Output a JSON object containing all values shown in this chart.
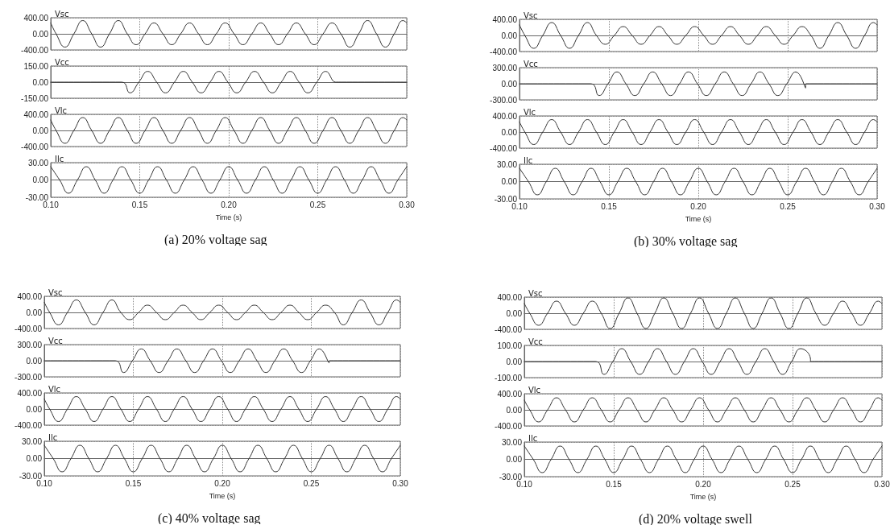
{
  "chart_data": [
    {
      "type": "line",
      "title": "Vsc",
      "x": [
        0.1,
        0.103,
        0.108,
        0.113,
        0.118,
        0.123,
        0.128,
        0.133,
        0.138,
        0.143,
        0.148,
        0.153,
        0.158,
        0.163,
        0.168,
        0.173,
        0.178,
        0.183,
        0.188,
        0.193,
        0.198,
        0.203,
        0.208,
        0.213,
        0.218,
        0.223,
        0.228,
        0.233,
        0.238,
        0.243,
        0.248,
        0.253,
        0.258,
        0.263,
        0.268,
        0.273,
        0.278,
        0.283,
        0.288,
        0.293,
        0.298,
        0.3
      ],
      "series": [
        {
          "color": "#333333",
          "values": [
            270,
            0,
            -330,
            0,
            330,
            0,
            -330,
            0,
            330,
            0,
            -270,
            0,
            270,
            0,
            -270,
            0,
            270,
            0,
            -270,
            0,
            270,
            0,
            -270,
            0,
            270,
            0,
            -270,
            0,
            270,
            0,
            -270,
            0,
            270,
            0,
            -330,
            0,
            330,
            0,
            -330,
            0,
            330,
            270
          ]
        }
      ],
      "xlim": [
        0.1,
        0.3
      ],
      "xticks": [
        {
          "value": 0.1,
          "label": null
        },
        {
          "value": 0.15,
          "label": null
        },
        {
          "value": 0.2,
          "label": null
        },
        {
          "value": 0.25,
          "label": null
        },
        {
          "value": 0.3,
          "label": null
        }
      ],
      "ylim": [
        -400,
        400
      ],
      "yticks": [
        {
          "value": -400,
          "label": "-400.00"
        },
        {
          "value": 0,
          "label": "0.00"
        },
        {
          "value": 400,
          "label": "400.00"
        }
      ],
      "grid": true,
      "tick_labels": "y",
      "line_style": "solid"
    },
    {
      "type": "line",
      "title": "Vcc",
      "x": [
        0.1,
        0.14,
        0.1445,
        0.1495,
        0.1545,
        0.1595,
        0.1645,
        0.1695,
        0.1745,
        0.1795,
        0.1845,
        0.1895,
        0.1945,
        0.1995,
        0.2045,
        0.2095,
        0.2145,
        0.2195,
        0.2245,
        0.2295,
        0.2345,
        0.2395,
        0.2445,
        0.2495,
        0.2545,
        0.26,
        0.2601,
        0.3
      ],
      "series": [
        {
          "color": "#333333",
          "values": [
            0,
            0,
            -100,
            0,
            100,
            0,
            -100,
            0,
            100,
            0,
            -100,
            0,
            100,
            0,
            -100,
            0,
            100,
            0,
            -100,
            0,
            100,
            0,
            -100,
            0,
            100,
            0,
            0,
            0
          ]
        }
      ],
      "xlim": [
        0.1,
        0.3
      ],
      "xticks": [
        {
          "value": 0.1,
          "label": null
        },
        {
          "value": 0.15,
          "label": null
        },
        {
          "value": 0.2,
          "label": null
        },
        {
          "value": 0.25,
          "label": null
        },
        {
          "value": 0.3,
          "label": null
        }
      ],
      "ylim": [
        -150,
        150
      ],
      "yticks": [
        {
          "value": -150,
          "label": "-150.00"
        },
        {
          "value": 0,
          "label": "0.00"
        },
        {
          "value": 150,
          "label": "150.00"
        }
      ],
      "grid": true,
      "tick_labels": "y",
      "line_style": "solid"
    },
    {
      "type": "line",
      "title": "Vlc",
      "x": [
        0.1,
        0.103,
        0.108,
        0.113,
        0.118,
        0.123,
        0.128,
        0.133,
        0.138,
        0.143,
        0.148,
        0.153,
        0.158,
        0.163,
        0.168,
        0.173,
        0.178,
        0.183,
        0.188,
        0.193,
        0.198,
        0.203,
        0.208,
        0.213,
        0.218,
        0.223,
        0.228,
        0.233,
        0.238,
        0.243,
        0.248,
        0.253,
        0.258,
        0.263,
        0.268,
        0.273,
        0.278,
        0.283,
        0.288,
        0.293,
        0.298,
        0.3
      ],
      "series": [
        {
          "color": "#333333",
          "values": [
            260,
            0,
            -320,
            0,
            320,
            0,
            -320,
            0,
            320,
            0,
            -320,
            0,
            320,
            0,
            -320,
            0,
            320,
            0,
            -320,
            0,
            320,
            0,
            -320,
            0,
            320,
            0,
            -320,
            0,
            320,
            0,
            -320,
            0,
            320,
            0,
            -320,
            0,
            320,
            0,
            -320,
            0,
            320,
            260
          ]
        }
      ],
      "xlim": [
        0.1,
        0.3
      ],
      "xticks": [
        {
          "value": 0.1,
          "label": null
        },
        {
          "value": 0.15,
          "label": null
        },
        {
          "value": 0.2,
          "label": null
        },
        {
          "value": 0.25,
          "label": null
        },
        {
          "value": 0.3,
          "label": null
        }
      ],
      "ylim": [
        -400,
        400
      ],
      "yticks": [
        {
          "value": -400,
          "label": "-400.00"
        },
        {
          "value": 0,
          "label": "0.00"
        },
        {
          "value": 400,
          "label": "400.00"
        }
      ],
      "grid": true,
      "tick_labels": "y",
      "line_style": "solid"
    },
    {
      "type": "line",
      "title": "Ilc",
      "x": [
        0.1,
        0.105,
        0.11,
        0.115,
        0.12,
        0.125,
        0.13,
        0.135,
        0.14,
        0.145,
        0.15,
        0.155,
        0.16,
        0.165,
        0.17,
        0.175,
        0.18,
        0.185,
        0.19,
        0.195,
        0.2,
        0.205,
        0.21,
        0.215,
        0.22,
        0.225,
        0.23,
        0.235,
        0.24,
        0.245,
        0.25,
        0.255,
        0.26,
        0.265,
        0.27,
        0.275,
        0.28,
        0.285,
        0.29,
        0.295,
        0.3
      ],
      "series": [
        {
          "color": "#333333",
          "values": [
            23,
            0,
            -23,
            0,
            23,
            0,
            -23,
            0,
            23,
            0,
            -23,
            0,
            23,
            0,
            -23,
            0,
            23,
            0,
            -23,
            0,
            23,
            0,
            -23,
            0,
            23,
            0,
            -23,
            0,
            23,
            0,
            -23,
            0,
            23,
            0,
            -23,
            0,
            23,
            0,
            -23,
            0,
            23
          ]
        }
      ],
      "xlim": [
        0.1,
        0.3
      ],
      "xticks": [
        {
          "value": 0.1,
          "label": "0.10"
        },
        {
          "value": 0.15,
          "label": "0.15"
        },
        {
          "value": 0.2,
          "label": "0.20"
        },
        {
          "value": 0.25,
          "label": "0.25"
        },
        {
          "value": 0.3,
          "label": "0.30"
        }
      ],
      "ylim": [
        -30,
        30
      ],
      "yticks": [
        {
          "value": -30,
          "label": "-30.00"
        },
        {
          "value": 0,
          "label": "0.00"
        },
        {
          "value": 30,
          "label": "30.00"
        }
      ],
      "grid": true,
      "line_style": "solid",
      "xlabel": "Time (s)",
      "annotations": [
        "(a) 20% voltage sag"
      ]
    },
    {
      "type": "line",
      "title": "Vsc",
      "x": [
        0.1,
        0.103,
        0.108,
        0.113,
        0.118,
        0.123,
        0.128,
        0.133,
        0.138,
        0.143,
        0.148,
        0.153,
        0.158,
        0.163,
        0.168,
        0.173,
        0.178,
        0.183,
        0.188,
        0.193,
        0.198,
        0.203,
        0.208,
        0.213,
        0.218,
        0.223,
        0.228,
        0.233,
        0.238,
        0.243,
        0.248,
        0.253,
        0.258,
        0.263,
        0.268,
        0.273,
        0.278,
        0.283,
        0.288,
        0.293,
        0.298,
        0.3
      ],
      "series": [
        {
          "color": "#333333",
          "values": [
            260,
            0,
            -320,
            0,
            320,
            0,
            -320,
            0,
            320,
            0,
            -220,
            0,
            220,
            0,
            -220,
            0,
            220,
            0,
            -220,
            0,
            220,
            0,
            -220,
            0,
            220,
            0,
            -220,
            0,
            220,
            0,
            -220,
            0,
            220,
            0,
            -320,
            0,
            320,
            0,
            -320,
            0,
            320,
            260
          ]
        }
      ],
      "xlim": [
        0.1,
        0.3
      ],
      "xticks": [
        {
          "value": 0.1,
          "label": null
        },
        {
          "value": 0.15,
          "label": null
        },
        {
          "value": 0.2,
          "label": null
        },
        {
          "value": 0.25,
          "label": null
        },
        {
          "value": 0.3,
          "label": null
        }
      ],
      "ylim": [
        -400,
        400
      ],
      "yticks": [
        {
          "value": -400,
          "label": "-400.00"
        },
        {
          "value": 0,
          "label": "0.00"
        },
        {
          "value": 400,
          "label": "400.00"
        }
      ],
      "grid": true,
      "tick_labels": "y",
      "line_style": "solid"
    },
    {
      "type": "line",
      "title": "Vcc",
      "x": [
        0.1,
        0.14,
        0.1445,
        0.1495,
        0.1545,
        0.1595,
        0.1645,
        0.1695,
        0.1745,
        0.1795,
        0.1845,
        0.1895,
        0.1945,
        0.1995,
        0.2045,
        0.2095,
        0.2145,
        0.2195,
        0.2245,
        0.2295,
        0.2345,
        0.2395,
        0.2445,
        0.2495,
        0.2545,
        0.26,
        0.2601,
        0.3
      ],
      "series": [
        {
          "color": "#333333",
          "values": [
            0,
            0,
            -220,
            0,
            220,
            0,
            -220,
            0,
            220,
            0,
            -220,
            0,
            220,
            0,
            -220,
            0,
            220,
            0,
            -220,
            0,
            220,
            0,
            -220,
            0,
            220,
            -80,
            0,
            0
          ]
        }
      ],
      "xlim": [
        0.1,
        0.3
      ],
      "xticks": [
        {
          "value": 0.1,
          "label": null
        },
        {
          "value": 0.15,
          "label": null
        },
        {
          "value": 0.2,
          "label": null
        },
        {
          "value": 0.25,
          "label": null
        },
        {
          "value": 0.3,
          "label": null
        }
      ],
      "ylim": [
        -300,
        300
      ],
      "yticks": [
        {
          "value": -300,
          "label": "-300.00"
        },
        {
          "value": 0,
          "label": "0.00"
        },
        {
          "value": 300,
          "label": "300.00"
        }
      ],
      "grid": true,
      "tick_labels": "y",
      "line_style": "solid"
    },
    {
      "type": "line",
      "title": "Vlc",
      "x": [
        0.1,
        0.103,
        0.108,
        0.113,
        0.118,
        0.123,
        0.128,
        0.133,
        0.138,
        0.143,
        0.148,
        0.153,
        0.158,
        0.163,
        0.168,
        0.173,
        0.178,
        0.183,
        0.188,
        0.193,
        0.198,
        0.203,
        0.208,
        0.213,
        0.218,
        0.223,
        0.228,
        0.233,
        0.238,
        0.243,
        0.248,
        0.253,
        0.258,
        0.263,
        0.268,
        0.273,
        0.278,
        0.283,
        0.288,
        0.293,
        0.298,
        0.3
      ],
      "series": [
        {
          "color": "#333333",
          "values": [
            250,
            0,
            -310,
            0,
            310,
            0,
            -310,
            0,
            310,
            0,
            -310,
            0,
            310,
            0,
            -310,
            0,
            310,
            0,
            -310,
            0,
            310,
            0,
            -310,
            0,
            310,
            0,
            -310,
            0,
            310,
            0,
            -310,
            0,
            310,
            0,
            -310,
            0,
            310,
            0,
            -310,
            0,
            310,
            250
          ]
        }
      ],
      "xlim": [
        0.1,
        0.3
      ],
      "xticks": [
        {
          "value": 0.1,
          "label": null
        },
        {
          "value": 0.15,
          "label": null
        },
        {
          "value": 0.2,
          "label": null
        },
        {
          "value": 0.25,
          "label": null
        },
        {
          "value": 0.3,
          "label": null
        }
      ],
      "ylim": [
        -400,
        400
      ],
      "yticks": [
        {
          "value": -400,
          "label": "-400.00"
        },
        {
          "value": 0,
          "label": "0.00"
        },
        {
          "value": 400,
          "label": "400.00"
        }
      ],
      "grid": true,
      "tick_labels": "y",
      "line_style": "solid"
    },
    {
      "type": "line",
      "title": "Ilc",
      "x": [
        0.1,
        0.105,
        0.11,
        0.115,
        0.12,
        0.125,
        0.13,
        0.135,
        0.14,
        0.145,
        0.15,
        0.155,
        0.16,
        0.165,
        0.17,
        0.175,
        0.18,
        0.185,
        0.19,
        0.195,
        0.2,
        0.205,
        0.21,
        0.215,
        0.22,
        0.225,
        0.23,
        0.235,
        0.24,
        0.245,
        0.25,
        0.255,
        0.26,
        0.265,
        0.27,
        0.275,
        0.28,
        0.285,
        0.29,
        0.295,
        0.3
      ],
      "series": [
        {
          "color": "#333333",
          "values": [
            23,
            0,
            -23,
            0,
            23,
            0,
            -23,
            0,
            23,
            0,
            -23,
            0,
            23,
            0,
            -23,
            0,
            23,
            0,
            -23,
            0,
            23,
            0,
            -23,
            0,
            23,
            0,
            -23,
            0,
            23,
            0,
            -23,
            0,
            23,
            0,
            -23,
            0,
            23,
            0,
            -23,
            0,
            23
          ]
        }
      ],
      "xlim": [
        0.1,
        0.3
      ],
      "xticks": [
        {
          "value": 0.1,
          "label": "0.10"
        },
        {
          "value": 0.15,
          "label": "0.15"
        },
        {
          "value": 0.2,
          "label": "0.20"
        },
        {
          "value": 0.25,
          "label": "0.25"
        },
        {
          "value": 0.3,
          "label": "0.30"
        }
      ],
      "ylim": [
        -30,
        30
      ],
      "yticks": [
        {
          "value": -30,
          "label": "-30.00"
        },
        {
          "value": 0,
          "label": "0.00"
        },
        {
          "value": 30,
          "label": "30.00"
        }
      ],
      "grid": true,
      "line_style": "solid",
      "xlabel": "Time (s)",
      "annotations": [
        "(b) 30% voltage sag"
      ]
    },
    {
      "type": "line",
      "title": "Vsc",
      "x": [
        0.1,
        0.103,
        0.108,
        0.113,
        0.118,
        0.123,
        0.128,
        0.133,
        0.138,
        0.143,
        0.148,
        0.153,
        0.158,
        0.163,
        0.168,
        0.173,
        0.178,
        0.183,
        0.188,
        0.193,
        0.198,
        0.203,
        0.208,
        0.213,
        0.218,
        0.223,
        0.228,
        0.233,
        0.238,
        0.243,
        0.248,
        0.253,
        0.258,
        0.263,
        0.268,
        0.273,
        0.278,
        0.283,
        0.288,
        0.293,
        0.298,
        0.3
      ],
      "series": [
        {
          "color": "#333333",
          "values": [
            250,
            0,
            -310,
            0,
            310,
            0,
            -310,
            0,
            310,
            0,
            -180,
            0,
            180,
            0,
            -180,
            0,
            180,
            0,
            -180,
            0,
            180,
            0,
            -180,
            0,
            180,
            0,
            -180,
            0,
            180,
            0,
            -180,
            0,
            180,
            0,
            -310,
            0,
            310,
            0,
            -310,
            0,
            310,
            250
          ]
        }
      ],
      "xlim": [
        0.1,
        0.3
      ],
      "xticks": [
        {
          "value": 0.1,
          "label": null
        },
        {
          "value": 0.15,
          "label": null
        },
        {
          "value": 0.2,
          "label": null
        },
        {
          "value": 0.25,
          "label": null
        },
        {
          "value": 0.3,
          "label": null
        }
      ],
      "ylim": [
        -400,
        400
      ],
      "yticks": [
        {
          "value": -400,
          "label": "-400.00"
        },
        {
          "value": 0,
          "label": "0.00"
        },
        {
          "value": 400,
          "label": "400.00"
        }
      ],
      "grid": true,
      "tick_labels": "y",
      "line_style": "solid"
    },
    {
      "type": "line",
      "title": "Vcc",
      "x": [
        0.1,
        0.14,
        0.1445,
        0.1495,
        0.1545,
        0.1595,
        0.1645,
        0.1695,
        0.1745,
        0.1795,
        0.1845,
        0.1895,
        0.1945,
        0.1995,
        0.2045,
        0.2095,
        0.2145,
        0.2195,
        0.2245,
        0.2295,
        0.2345,
        0.2395,
        0.2445,
        0.2495,
        0.2545,
        0.26,
        0.2601,
        0.3
      ],
      "series": [
        {
          "color": "#333333",
          "values": [
            0,
            0,
            -220,
            0,
            220,
            0,
            -220,
            0,
            220,
            0,
            -220,
            0,
            220,
            0,
            -220,
            0,
            220,
            0,
            -220,
            0,
            220,
            0,
            -220,
            0,
            220,
            -40,
            0,
            0
          ]
        }
      ],
      "xlim": [
        0.1,
        0.3
      ],
      "xticks": [
        {
          "value": 0.1,
          "label": null
        },
        {
          "value": 0.15,
          "label": null
        },
        {
          "value": 0.2,
          "label": null
        },
        {
          "value": 0.25,
          "label": null
        },
        {
          "value": 0.3,
          "label": null
        }
      ],
      "ylim": [
        -300,
        300
      ],
      "yticks": [
        {
          "value": -300,
          "label": "-300.00"
        },
        {
          "value": 0,
          "label": "0.00"
        },
        {
          "value": 300,
          "label": "300.00"
        }
      ],
      "grid": true,
      "tick_labels": "y",
      "line_style": "solid"
    },
    {
      "type": "line",
      "title": "Vlc",
      "x": [
        0.1,
        0.103,
        0.108,
        0.113,
        0.118,
        0.123,
        0.128,
        0.133,
        0.138,
        0.143,
        0.148,
        0.153,
        0.158,
        0.163,
        0.168,
        0.173,
        0.178,
        0.183,
        0.188,
        0.193,
        0.198,
        0.203,
        0.208,
        0.213,
        0.218,
        0.223,
        0.228,
        0.233,
        0.238,
        0.243,
        0.248,
        0.253,
        0.258,
        0.263,
        0.268,
        0.273,
        0.278,
        0.283,
        0.288,
        0.293,
        0.298,
        0.3
      ],
      "series": [
        {
          "color": "#333333",
          "values": [
            250,
            0,
            -310,
            0,
            310,
            0,
            -310,
            0,
            310,
            0,
            -310,
            0,
            310,
            0,
            -310,
            0,
            310,
            0,
            -310,
            0,
            310,
            0,
            -310,
            0,
            310,
            0,
            -310,
            0,
            310,
            0,
            -310,
            0,
            310,
            0,
            -310,
            0,
            310,
            0,
            -310,
            0,
            310,
            250
          ]
        }
      ],
      "xlim": [
        0.1,
        0.3
      ],
      "xticks": [
        {
          "value": 0.1,
          "label": null
        },
        {
          "value": 0.15,
          "label": null
        },
        {
          "value": 0.2,
          "label": null
        },
        {
          "value": 0.25,
          "label": null
        },
        {
          "value": 0.3,
          "label": null
        }
      ],
      "ylim": [
        -400,
        400
      ],
      "yticks": [
        {
          "value": -400,
          "label": "-400.00"
        },
        {
          "value": 0,
          "label": "0.00"
        },
        {
          "value": 400,
          "label": "400.00"
        }
      ],
      "grid": true,
      "tick_labels": "y",
      "line_style": "solid"
    },
    {
      "type": "line",
      "title": "Ilc",
      "x": [
        0.1,
        0.105,
        0.11,
        0.115,
        0.12,
        0.125,
        0.13,
        0.135,
        0.14,
        0.145,
        0.15,
        0.155,
        0.16,
        0.165,
        0.17,
        0.175,
        0.18,
        0.185,
        0.19,
        0.195,
        0.2,
        0.205,
        0.21,
        0.215,
        0.22,
        0.225,
        0.23,
        0.235,
        0.24,
        0.245,
        0.25,
        0.255,
        0.26,
        0.265,
        0.27,
        0.275,
        0.28,
        0.285,
        0.29,
        0.295,
        0.3
      ],
      "series": [
        {
          "color": "#333333",
          "values": [
            23,
            0,
            -23,
            0,
            23,
            0,
            -23,
            0,
            23,
            0,
            -23,
            0,
            23,
            0,
            -23,
            0,
            23,
            0,
            -23,
            0,
            23,
            0,
            -23,
            0,
            23,
            0,
            -23,
            0,
            23,
            0,
            -23,
            0,
            23,
            0,
            -23,
            0,
            23,
            0,
            -23,
            0,
            23
          ]
        }
      ],
      "xlim": [
        0.1,
        0.3
      ],
      "xticks": [
        {
          "value": 0.1,
          "label": "0.10"
        },
        {
          "value": 0.15,
          "label": "0.15"
        },
        {
          "value": 0.2,
          "label": "0.20"
        },
        {
          "value": 0.25,
          "label": "0.25"
        },
        {
          "value": 0.3,
          "label": "0.30"
        }
      ],
      "ylim": [
        -30,
        30
      ],
      "yticks": [
        {
          "value": -30,
          "label": "-30.00"
        },
        {
          "value": 0,
          "label": "0.00"
        },
        {
          "value": 30,
          "label": "30.00"
        }
      ],
      "grid": true,
      "line_style": "solid",
      "xlabel": "Time (s)",
      "annotations": [
        "(c) 40% voltage sag"
      ]
    },
    {
      "type": "line",
      "title": "Vsc",
      "x": [
        0.1,
        0.103,
        0.108,
        0.113,
        0.118,
        0.123,
        0.128,
        0.133,
        0.138,
        0.143,
        0.148,
        0.153,
        0.158,
        0.163,
        0.168,
        0.173,
        0.178,
        0.183,
        0.188,
        0.193,
        0.198,
        0.203,
        0.208,
        0.213,
        0.218,
        0.223,
        0.228,
        0.233,
        0.238,
        0.243,
        0.248,
        0.253,
        0.258,
        0.263,
        0.268,
        0.273,
        0.278,
        0.283,
        0.288,
        0.293,
        0.298,
        0.3
      ],
      "series": [
        {
          "color": "#333333",
          "values": [
            240,
            0,
            -300,
            0,
            300,
            0,
            -300,
            0,
            300,
            0,
            -380,
            0,
            380,
            0,
            -380,
            0,
            380,
            0,
            -380,
            0,
            380,
            0,
            -380,
            0,
            380,
            0,
            -380,
            0,
            380,
            0,
            -380,
            0,
            380,
            0,
            -300,
            0,
            300,
            0,
            -300,
            0,
            300,
            240
          ]
        }
      ],
      "xlim": [
        0.1,
        0.3
      ],
      "xticks": [
        {
          "value": 0.1,
          "label": null
        },
        {
          "value": 0.15,
          "label": null
        },
        {
          "value": 0.2,
          "label": null
        },
        {
          "value": 0.25,
          "label": null
        },
        {
          "value": 0.3,
          "label": null
        }
      ],
      "ylim": [
        -400,
        400
      ],
      "yticks": [
        {
          "value": -400,
          "label": "-400.00"
        },
        {
          "value": 0,
          "label": "0.00"
        },
        {
          "value": 400,
          "label": "400.00"
        }
      ],
      "grid": true,
      "tick_labels": "y",
      "line_style": "solid"
    },
    {
      "type": "line",
      "title": "Vcc",
      "x": [
        0.1,
        0.14,
        0.1445,
        0.1495,
        0.1545,
        0.1595,
        0.1645,
        0.1695,
        0.1745,
        0.1795,
        0.1845,
        0.1895,
        0.1945,
        0.1995,
        0.2045,
        0.2095,
        0.2145,
        0.2195,
        0.2245,
        0.2295,
        0.2345,
        0.2395,
        0.2445,
        0.2495,
        0.2545,
        0.26,
        0.2601,
        0.3
      ],
      "series": [
        {
          "color": "#333333",
          "values": [
            0,
            0,
            -80,
            0,
            80,
            0,
            -80,
            0,
            80,
            0,
            -80,
            0,
            80,
            0,
            -80,
            0,
            80,
            0,
            -80,
            0,
            80,
            0,
            -80,
            0,
            80,
            20,
            0,
            0
          ]
        }
      ],
      "xlim": [
        0.1,
        0.3
      ],
      "xticks": [
        {
          "value": 0.1,
          "label": null
        },
        {
          "value": 0.15,
          "label": null
        },
        {
          "value": 0.2,
          "label": null
        },
        {
          "value": 0.25,
          "label": null
        },
        {
          "value": 0.3,
          "label": null
        }
      ],
      "ylim": [
        -100,
        100
      ],
      "yticks": [
        {
          "value": -100,
          "label": "-100.00"
        },
        {
          "value": 0,
          "label": "0.00"
        },
        {
          "value": 100,
          "label": "100.00"
        }
      ],
      "grid": true,
      "tick_labels": "y",
      "line_style": "solid"
    },
    {
      "type": "line",
      "title": "Vlc",
      "x": [
        0.1,
        0.103,
        0.108,
        0.113,
        0.118,
        0.123,
        0.128,
        0.133,
        0.138,
        0.143,
        0.148,
        0.153,
        0.158,
        0.163,
        0.168,
        0.173,
        0.178,
        0.183,
        0.188,
        0.193,
        0.198,
        0.203,
        0.208,
        0.213,
        0.218,
        0.223,
        0.228,
        0.233,
        0.238,
        0.243,
        0.248,
        0.253,
        0.258,
        0.263,
        0.268,
        0.273,
        0.278,
        0.283,
        0.288,
        0.293,
        0.298,
        0.3
      ],
      "series": [
        {
          "color": "#333333",
          "values": [
            240,
            0,
            -300,
            0,
            300,
            0,
            -300,
            0,
            300,
            0,
            -300,
            0,
            300,
            0,
            -300,
            0,
            300,
            0,
            -300,
            0,
            300,
            0,
            -300,
            0,
            300,
            0,
            -300,
            0,
            300,
            0,
            -300,
            0,
            300,
            0,
            -300,
            0,
            300,
            0,
            -300,
            0,
            300,
            240
          ]
        }
      ],
      "xlim": [
        0.1,
        0.3
      ],
      "xticks": [
        {
          "value": 0.1,
          "label": null
        },
        {
          "value": 0.15,
          "label": null
        },
        {
          "value": 0.2,
          "label": null
        },
        {
          "value": 0.25,
          "label": null
        },
        {
          "value": 0.3,
          "label": null
        }
      ],
      "ylim": [
        -400,
        400
      ],
      "yticks": [
        {
          "value": -400,
          "label": "-400.00"
        },
        {
          "value": 0,
          "label": "0.00"
        },
        {
          "value": 400,
          "label": "400.00"
        }
      ],
      "grid": true,
      "tick_labels": "y",
      "line_style": "solid"
    },
    {
      "type": "line",
      "title": "Ilc",
      "x": [
        0.1,
        0.105,
        0.11,
        0.115,
        0.12,
        0.125,
        0.13,
        0.135,
        0.14,
        0.145,
        0.15,
        0.155,
        0.16,
        0.165,
        0.17,
        0.175,
        0.18,
        0.185,
        0.19,
        0.195,
        0.2,
        0.205,
        0.21,
        0.215,
        0.22,
        0.225,
        0.23,
        0.235,
        0.24,
        0.245,
        0.25,
        0.255,
        0.26,
        0.265,
        0.27,
        0.275,
        0.28,
        0.285,
        0.29,
        0.295,
        0.3
      ],
      "series": [
        {
          "color": "#333333",
          "values": [
            23,
            0,
            -23,
            0,
            23,
            0,
            -23,
            0,
            23,
            0,
            -23,
            0,
            23,
            0,
            -23,
            0,
            23,
            0,
            -23,
            0,
            23,
            0,
            -23,
            0,
            23,
            0,
            -23,
            0,
            23,
            0,
            -23,
            0,
            23,
            0,
            -23,
            0,
            23,
            0,
            -23,
            0,
            23
          ]
        }
      ],
      "xlim": [
        0.1,
        0.3
      ],
      "xticks": [
        {
          "value": 0.1,
          "label": "0.10"
        },
        {
          "value": 0.15,
          "label": "0.15"
        },
        {
          "value": 0.2,
          "label": "0.20"
        },
        {
          "value": 0.25,
          "label": "0.25"
        },
        {
          "value": 0.3,
          "label": "0.30"
        }
      ],
      "ylim": [
        -30,
        30
      ],
      "yticks": [
        {
          "value": -30,
          "label": "-30.00"
        },
        {
          "value": 0,
          "label": "0.00"
        },
        {
          "value": 30,
          "label": "30.00"
        }
      ],
      "grid": true,
      "line_style": "solid",
      "xlabel": "Time (s)",
      "annotations": [
        "(d) 20% voltage swell"
      ]
    }
  ]
}
